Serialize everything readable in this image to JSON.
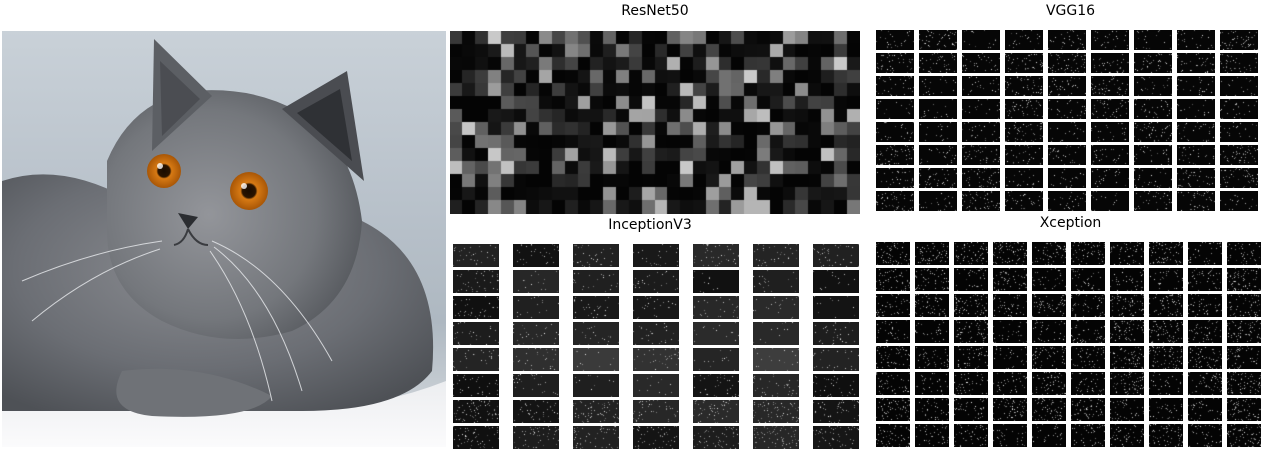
{
  "figure": {
    "photo": {
      "subject": "cat-photo"
    },
    "panels": [
      {
        "id": "resnet",
        "title": "ResNet50",
        "kind": "heatmap",
        "rows": 14,
        "cols": 32
      },
      {
        "id": "vgg",
        "title": "VGG16",
        "kind": "tiles",
        "rows": 8,
        "cols": 9
      },
      {
        "id": "inception",
        "title": "InceptionV3",
        "kind": "tiles",
        "rows": 8,
        "cols": 7
      },
      {
        "id": "xception",
        "title": "Xception",
        "kind": "tiles",
        "rows": 8,
        "cols": 10
      }
    ]
  },
  "colors": {
    "background": "#ffffff",
    "map_background": "#000000",
    "activation": "#ffffff"
  }
}
